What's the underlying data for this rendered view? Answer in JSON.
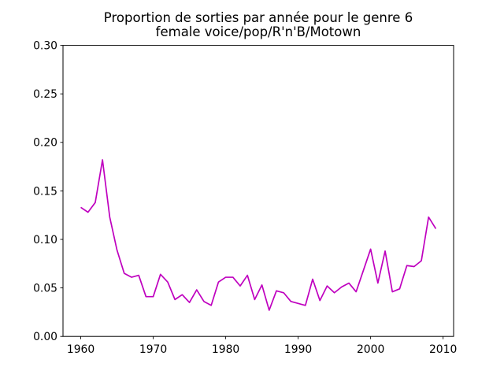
{
  "chart_data": {
    "type": "line",
    "title_lines": [
      "Proportion de sorties par année pour le genre 6",
      "female voice/pop/R'n'B/Motown"
    ],
    "x": [
      1960,
      1961,
      1962,
      1963,
      1964,
      1965,
      1966,
      1967,
      1968,
      1969,
      1970,
      1971,
      1972,
      1973,
      1974,
      1975,
      1976,
      1977,
      1978,
      1979,
      1980,
      1981,
      1982,
      1983,
      1984,
      1985,
      1986,
      1987,
      1988,
      1989,
      1990,
      1991,
      1992,
      1993,
      1994,
      1995,
      1996,
      1997,
      1998,
      1999,
      2000,
      2001,
      2002,
      2003,
      2004,
      2005,
      2006,
      2007,
      2008,
      2009
    ],
    "series": [
      {
        "name": "proportion-genre-6",
        "color": "#bf00bf",
        "values": [
          0.133,
          0.128,
          0.138,
          0.182,
          0.123,
          0.089,
          0.065,
          0.061,
          0.063,
          0.041,
          0.041,
          0.064,
          0.056,
          0.038,
          0.043,
          0.035,
          0.048,
          0.036,
          0.032,
          0.056,
          0.061,
          0.061,
          0.052,
          0.063,
          0.038,
          0.053,
          0.027,
          0.047,
          0.045,
          0.036,
          0.034,
          0.032,
          0.059,
          0.037,
          0.052,
          0.045,
          0.051,
          0.055,
          0.046,
          0.068,
          0.09,
          0.055,
          0.088,
          0.046,
          0.049,
          0.073,
          0.072,
          0.078,
          0.123,
          0.111
        ]
      }
    ],
    "xlabel": "",
    "ylabel": "",
    "xlim": [
      1957.55,
      2011.45
    ],
    "ylim": [
      0.0,
      0.3
    ],
    "xticks": [
      1960,
      1970,
      1980,
      1990,
      2000,
      2010
    ],
    "ytick_labels": [
      "0.00",
      "0.05",
      "0.10",
      "0.15",
      "0.20",
      "0.25",
      "0.30"
    ],
    "grid": false,
    "legend_position": "none",
    "background_color": "#ffffff",
    "axes_color": "#000000",
    "text_color": "#000000"
  }
}
